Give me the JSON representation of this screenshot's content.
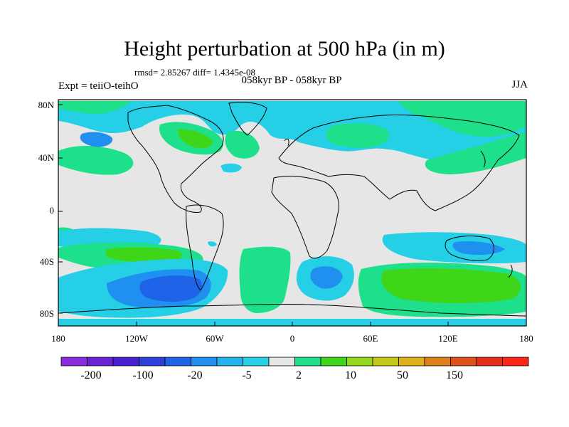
{
  "title": "Height perturbation at 500 hPa (in m)",
  "stats": "rmsd= 2.85267 diff= 1.4345e-08",
  "left_label": "Expt = teiiO-teihO",
  "center_label": "058kyr BP - 058kyr BP",
  "right_label": "JJA",
  "lat_labels": [
    "80N",
    "40N",
    "0",
    "40S",
    "80S"
  ],
  "lon_labels": [
    "180",
    "120W",
    "60W",
    "0",
    "60E",
    "120E",
    "180"
  ],
  "colorbar": {
    "colors": [
      "#8a2be2",
      "#6b22d6",
      "#4a1fd0",
      "#2f3fdc",
      "#1f64e8",
      "#1f8ff0",
      "#22b3ee",
      "#25cfe6",
      "#e6e6e6",
      "#1fe08a",
      "#3fd61a",
      "#93d81a",
      "#c6c81a",
      "#e0b01a",
      "#e0801a",
      "#e0501a",
      "#e62e1a",
      "#ff2418"
    ],
    "labels": [
      "-200",
      "-100",
      "-20",
      "-5",
      "2",
      "10",
      "50",
      "150"
    ]
  },
  "palette": {
    "neutral": "#e6e6e6",
    "light_blue": "#25cfe6",
    "mid_blue": "#22b3ee",
    "blue": "#1f8ff0",
    "deep_blue": "#1f64e8",
    "light_green": "#1fe08a",
    "green": "#3fd61a"
  }
}
